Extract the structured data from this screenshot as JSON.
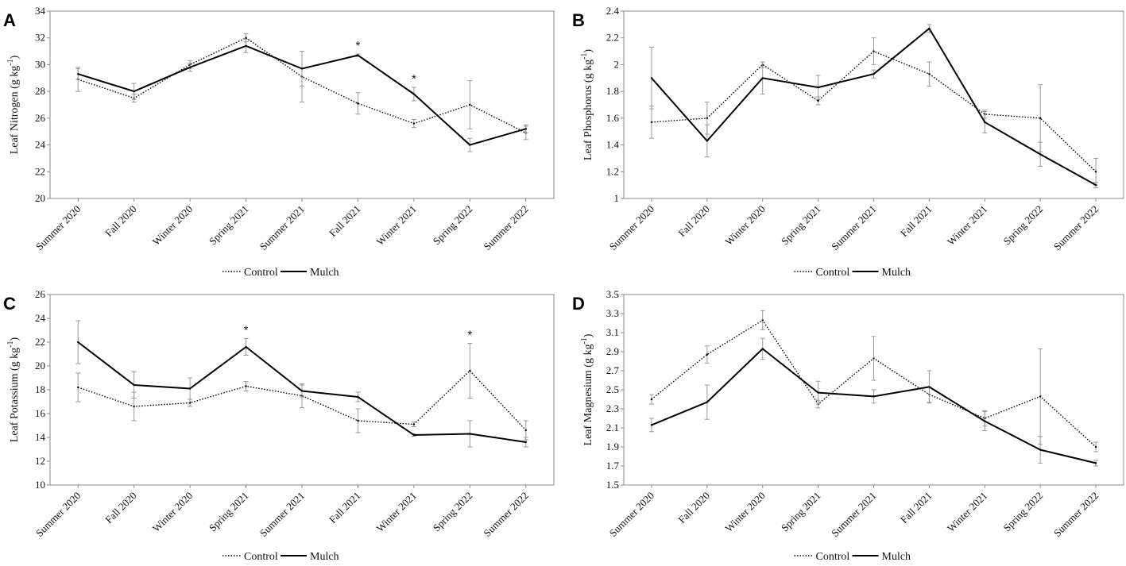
{
  "chart_data": [
    {
      "type": "line",
      "panel": "A",
      "ylabel": "Leaf Nitrogen",
      "yunit": "(g kg",
      "yunit_exp": "-1",
      "yunit_close": ")",
      "ylim": [
        20,
        34
      ],
      "yticks": [
        "20",
        "22",
        "24",
        "26",
        "28",
        "30",
        "32",
        "34"
      ],
      "categories": [
        "Summer 2020",
        "Fall 2020",
        "Winter 2020",
        "Spring 2021",
        "Summer 2021",
        "Fall 2021",
        "Winter 2021",
        "Spring 2022",
        "Summer 2022"
      ],
      "series": [
        {
          "name": "Control",
          "style": "dotted",
          "values": [
            28.9,
            27.5,
            30.0,
            32.0,
            29.1,
            27.1,
            25.6,
            27.0,
            24.9
          ],
          "errors": [
            0.9,
            0.3,
            0.3,
            0.3,
            1.9,
            0.8,
            0.3,
            1.8,
            0.5
          ]
        },
        {
          "name": "Mulch",
          "style": "solid",
          "values": [
            29.3,
            28.0,
            29.8,
            31.4,
            29.7,
            30.7,
            27.8,
            24.0,
            25.2
          ],
          "errors": [
            0.4,
            0.6,
            0.3,
            0.5,
            1.3,
            0.1,
            0.5,
            0.5,
            0.3
          ]
        }
      ],
      "significance": [
        {
          "category": "Fall 2021",
          "label": "*"
        },
        {
          "category": "Winter 2021",
          "label": "*"
        }
      ],
      "legend": [
        "Control",
        "Mulch"
      ]
    },
    {
      "type": "line",
      "panel": "B",
      "ylabel": "Leaf Phosphorus",
      "yunit": "(g kg",
      "yunit_exp": "-1",
      "yunit_close": ")",
      "ylim": [
        1.0,
        2.4
      ],
      "yticks": [
        "1",
        "1.2",
        "1.4",
        "1.6",
        "1.8",
        "2",
        "2.2",
        "2.4"
      ],
      "categories": [
        "Summer 2020",
        "Fall 2020",
        "Winter 2020",
        "Spring 2021",
        "Summer 2021",
        "Fall 2021",
        "Winter 2021",
        "Spring 2022",
        "Summer 2022"
      ],
      "series": [
        {
          "name": "Control",
          "style": "dotted",
          "values": [
            1.57,
            1.6,
            2.0,
            1.73,
            2.1,
            1.93,
            1.63,
            1.6,
            1.2
          ],
          "errors": [
            0.12,
            0.12,
            0.02,
            0.03,
            0.1,
            0.09,
            0.03,
            0.25,
            0.1
          ]
        },
        {
          "name": "Mulch",
          "style": "solid",
          "values": [
            1.9,
            1.43,
            1.9,
            1.83,
            1.93,
            2.27,
            1.57,
            1.33,
            1.1
          ],
          "errors": [
            0.23,
            0.12,
            0.12,
            0.09,
            0.03,
            0.03,
            0.08,
            0.09,
            0.02
          ]
        }
      ],
      "significance": [],
      "legend": [
        "Control",
        "Mulch"
      ]
    },
    {
      "type": "line",
      "panel": "C",
      "ylabel": "Leaf Potassium",
      "yunit": "(g kg",
      "yunit_exp": "-1",
      "yunit_close": ")",
      "ylim": [
        10,
        26
      ],
      "yticks": [
        "10",
        "12",
        "14",
        "16",
        "18",
        "20",
        "22",
        "24",
        "26"
      ],
      "categories": [
        "Summer 2020",
        "Fall 2020",
        "Winter 2020",
        "Spring 2021",
        "Summer 2021",
        "Fall 2021",
        "Winter 2021",
        "Spring 2022",
        "Summer 2022"
      ],
      "series": [
        {
          "name": "Control",
          "style": "dotted",
          "values": [
            18.2,
            16.6,
            16.9,
            18.3,
            17.5,
            15.4,
            15.1,
            19.6,
            14.6
          ],
          "errors": [
            1.2,
            1.2,
            0.3,
            0.4,
            1.0,
            1.0,
            0.2,
            2.3,
            0.8
          ]
        },
        {
          "name": "Mulch",
          "style": "solid",
          "values": [
            22.0,
            18.4,
            18.1,
            21.6,
            17.9,
            17.4,
            14.2,
            14.3,
            13.6
          ],
          "errors": [
            1.8,
            1.1,
            0.9,
            0.7,
            0.5,
            0.4,
            0.1,
            1.1,
            0.4
          ]
        }
      ],
      "significance": [
        {
          "category": "Spring 2021",
          "label": "*"
        },
        {
          "category": "Spring 2022",
          "label": "*"
        }
      ],
      "legend": [
        "Control",
        "Mulch"
      ]
    },
    {
      "type": "line",
      "panel": "D",
      "ylabel": "Leaf Magnesium",
      "yunit": "(g kg",
      "yunit_exp": "-1",
      "yunit_close": ")",
      "ylim": [
        1.5,
        3.5
      ],
      "yticks": [
        "1.5",
        "1.7",
        "1.9",
        "2.1",
        "2.3",
        "2.5",
        "2.7",
        "2.9",
        "3.1",
        "3.3",
        "3.5"
      ],
      "categories": [
        "Summer 2020",
        "Fall 2020",
        "Winter 2020",
        "Spring 2021",
        "Summer 2021",
        "Fall 2021",
        "Winter 2021",
        "Spring 2022",
        "Summer 2022"
      ],
      "series": [
        {
          "name": "Control",
          "style": "dotted",
          "values": [
            2.4,
            2.87,
            3.23,
            2.35,
            2.83,
            2.45,
            2.2,
            2.43,
            1.9
          ],
          "errors": [
            0.05,
            0.09,
            0.1,
            0.04,
            0.23,
            0.08,
            0.08,
            0.5,
            0.05
          ]
        },
        {
          "name": "Mulch",
          "style": "solid",
          "values": [
            2.13,
            2.37,
            2.93,
            2.47,
            2.43,
            2.53,
            2.17,
            1.87,
            1.73
          ],
          "errors": [
            0.07,
            0.18,
            0.11,
            0.12,
            0.07,
            0.17,
            0.1,
            0.14,
            0.03
          ]
        }
      ],
      "significance": [],
      "legend": [
        "Control",
        "Mulch"
      ]
    }
  ]
}
